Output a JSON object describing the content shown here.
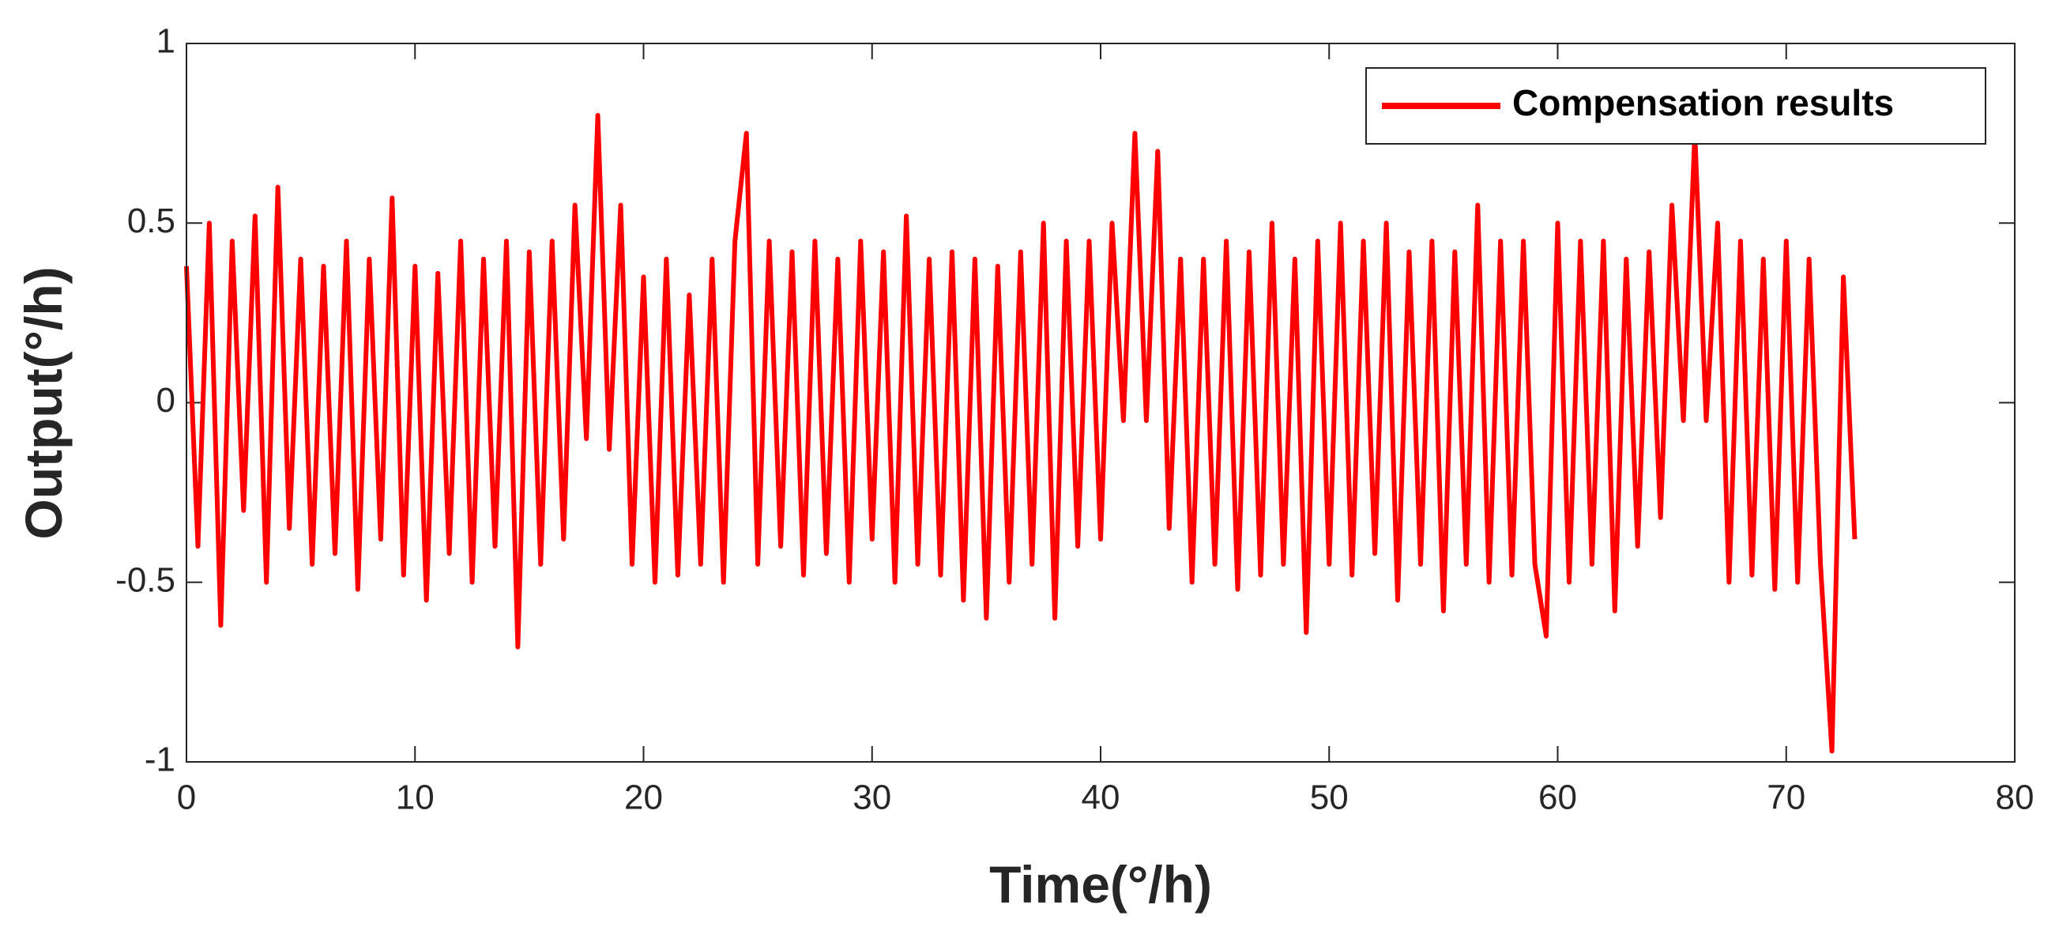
{
  "chart_data": {
    "type": "line",
    "xlabel": "Time(°/h)",
    "ylabel": "Output(°/h)",
    "x": [
      0,
      0.5,
      1,
      1.5,
      2,
      2.5,
      3,
      3.5,
      4,
      4.5,
      5,
      5.5,
      6,
      6.5,
      7,
      7.5,
      8,
      8.5,
      9,
      9.5,
      10,
      10.5,
      11,
      11.5,
      12,
      12.5,
      13,
      13.5,
      14,
      14.5,
      15,
      15.5,
      16,
      16.5,
      17,
      17.5,
      18,
      18.5,
      19,
      19.5,
      20,
      20.5,
      21,
      21.5,
      22,
      22.5,
      23,
      23.5,
      24,
      24.5,
      25,
      25.5,
      26,
      26.5,
      27,
      27.5,
      28,
      28.5,
      29,
      29.5,
      30,
      30.5,
      31,
      31.5,
      32,
      32.5,
      33,
      33.5,
      34,
      34.5,
      35,
      35.5,
      36,
      36.5,
      37,
      37.5,
      38,
      38.5,
      39,
      39.5,
      40,
      40.5,
      41,
      41.5,
      42,
      42.5,
      43,
      43.5,
      44,
      44.5,
      45,
      45.5,
      46,
      46.5,
      47,
      47.5,
      48,
      48.5,
      49,
      49.5,
      50,
      50.5,
      51,
      51.5,
      52,
      52.5,
      53,
      53.5,
      54,
      54.5,
      55,
      55.5,
      56,
      56.5,
      57,
      57.5,
      58,
      58.5,
      59,
      59.5,
      60,
      60.5,
      61,
      61.5,
      62,
      62.5,
      63,
      63.5,
      64,
      64.5,
      65,
      65.5,
      66,
      66.5,
      67,
      67.5,
      68,
      68.5,
      69,
      69.5,
      70,
      70.5,
      71,
      71.5,
      72,
      72.5,
      73
    ],
    "series": [
      {
        "name": "Compensation results",
        "color": "#ff0000",
        "values": [
          0.38,
          -0.4,
          0.5,
          -0.62,
          0.45,
          -0.3,
          0.52,
          -0.5,
          0.6,
          -0.35,
          0.4,
          -0.45,
          0.38,
          -0.42,
          0.45,
          -0.52,
          0.4,
          -0.38,
          0.57,
          -0.48,
          0.38,
          -0.55,
          0.36,
          -0.42,
          0.45,
          -0.5,
          0.4,
          -0.4,
          0.45,
          -0.68,
          0.42,
          -0.45,
          0.45,
          -0.38,
          0.55,
          -0.1,
          0.8,
          -0.13,
          0.55,
          -0.45,
          0.35,
          -0.5,
          0.4,
          -0.48,
          0.3,
          -0.45,
          0.4,
          -0.5,
          0.45,
          0.75,
          -0.45,
          0.45,
          -0.4,
          0.42,
          -0.48,
          0.45,
          -0.42,
          0.4,
          -0.5,
          0.45,
          -0.38,
          0.42,
          -0.5,
          0.52,
          -0.45,
          0.4,
          -0.48,
          0.42,
          -0.55,
          0.4,
          -0.6,
          0.38,
          -0.5,
          0.42,
          -0.45,
          0.5,
          -0.6,
          0.45,
          -0.4,
          0.45,
          -0.38,
          0.5,
          -0.05,
          0.75,
          -0.05,
          0.7,
          -0.35,
          0.4,
          -0.5,
          0.4,
          -0.45,
          0.45,
          -0.52,
          0.42,
          -0.48,
          0.5,
          -0.45,
          0.4,
          -0.64,
          0.45,
          -0.45,
          0.5,
          -0.48,
          0.45,
          -0.42,
          0.5,
          -0.55,
          0.42,
          -0.45,
          0.45,
          -0.58,
          0.42,
          -0.45,
          0.55,
          -0.5,
          0.45,
          -0.48,
          0.45,
          -0.45,
          -0.65,
          0.5,
          -0.5,
          0.45,
          -0.45,
          0.45,
          -0.58,
          0.4,
          -0.4,
          0.42,
          -0.32,
          0.55,
          -0.05,
          0.75,
          -0.05,
          0.5,
          -0.5,
          0.45,
          -0.48,
          0.4,
          -0.52,
          0.45,
          -0.5,
          0.4,
          -0.45,
          -0.97,
          0.35,
          -0.38
        ]
      }
    ],
    "xlim": [
      0,
      80
    ],
    "xticks": [
      0,
      10,
      20,
      30,
      40,
      50,
      60,
      70,
      80
    ],
    "ylim": [
      -1,
      1
    ],
    "yticks": [
      -1,
      -0.5,
      0,
      0.5,
      1
    ],
    "legend": "northeast",
    "grid": false
  }
}
